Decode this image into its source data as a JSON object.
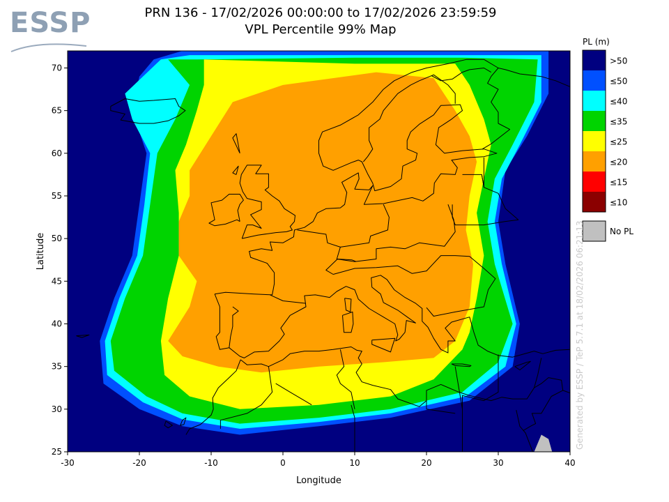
{
  "logo": {
    "text": "ESSP"
  },
  "title": {
    "line1": "PRN 136 - 17/02/2026 00:00:00 to 17/02/2026 23:59:59",
    "line2": "VPL Percentile 99% Map"
  },
  "watermark": "Generated by ESSP / TeP 5.7.1 at 18/02/2026 06:21:13",
  "colors": {
    "gt50": "#000080",
    "le50": "#0050ff",
    "le40": "#00ffff",
    "le35": "#00d400",
    "le25": "#ffff00",
    "le20": "#ffa000",
    "le15": "#ff0000",
    "le10": "#8b0000",
    "nopl": "#c0c0c0",
    "coast": "#000000"
  },
  "chart_data": {
    "type": "heatmap",
    "xlabel": "Longitude",
    "ylabel": "Latitude",
    "xlim": [
      -30,
      40
    ],
    "ylim": [
      25,
      72
    ],
    "xticks": [
      -30,
      -20,
      -10,
      0,
      10,
      20,
      30,
      40
    ],
    "yticks": [
      25,
      30,
      35,
      40,
      45,
      50,
      55,
      60,
      65,
      70
    ],
    "legend": {
      "title": "PL (m)",
      "placement": "right",
      "entries": [
        {
          "label": ">50",
          "color": "#000080"
        },
        {
          "label": "≤50",
          "color": "#0050ff"
        },
        {
          "label": "≤40",
          "color": "#00ffff"
        },
        {
          "label": "≤35",
          "color": "#00d400"
        },
        {
          "label": "≤25",
          "color": "#ffff00"
        },
        {
          "label": "≤20",
          "color": "#ffa000"
        },
        {
          "label": "≤15",
          "color": "#ff0000"
        },
        {
          "label": "≤10",
          "color": "#8b0000"
        }
      ],
      "no_pl": {
        "label": "No PL",
        "color": "#c0c0c0"
      }
    },
    "regions": [
      {
        "level": "≤50",
        "polygon": [
          [
            -18,
            71
          ],
          [
            -14,
            72
          ],
          [
            12,
            72
          ],
          [
            25,
            72
          ],
          [
            37,
            72
          ],
          [
            37,
            67
          ],
          [
            34,
            62
          ],
          [
            31,
            58
          ],
          [
            30,
            52
          ],
          [
            31,
            47
          ],
          [
            33,
            40
          ],
          [
            32,
            35
          ],
          [
            26,
            31
          ],
          [
            15,
            29
          ],
          [
            5,
            28
          ],
          [
            -6,
            27
          ],
          [
            -14,
            28
          ],
          [
            -20,
            30
          ],
          [
            -25,
            33
          ],
          [
            -25.5,
            38
          ],
          [
            -23.5,
            43
          ],
          [
            -21,
            48
          ],
          [
            -20,
            54
          ],
          [
            -19,
            60
          ],
          [
            -21,
            65
          ],
          [
            -20,
            69
          ]
        ]
      },
      {
        "level": "≤40",
        "polygon": [
          [
            -17,
            71
          ],
          [
            -13,
            71.5
          ],
          [
            12,
            71.5
          ],
          [
            25,
            71.5
          ],
          [
            36,
            71.5
          ],
          [
            36,
            66
          ],
          [
            33,
            61
          ],
          [
            30.5,
            57
          ],
          [
            29.5,
            52
          ],
          [
            30.5,
            47
          ],
          [
            32.5,
            40
          ],
          [
            31,
            35
          ],
          [
            25.5,
            31.5
          ],
          [
            15,
            29.5
          ],
          [
            5,
            28.5
          ],
          [
            -6,
            27.7
          ],
          [
            -14,
            28.8
          ],
          [
            -19.5,
            30.8
          ],
          [
            -24.5,
            34
          ],
          [
            -24.8,
            38
          ],
          [
            -22.8,
            43
          ],
          [
            -20.3,
            48
          ],
          [
            -19.3,
            54
          ],
          [
            -18.5,
            60
          ],
          [
            -21,
            64
          ],
          [
            -22,
            67
          ]
        ]
      },
      {
        "level": "≤35",
        "polygon": [
          [
            -16,
            71
          ],
          [
            -12,
            71
          ],
          [
            10,
            71.2
          ],
          [
            25,
            71.2
          ],
          [
            35.5,
            71
          ],
          [
            35,
            66
          ],
          [
            32,
            61
          ],
          [
            29.5,
            57
          ],
          [
            28.5,
            52
          ],
          [
            29.5,
            47
          ],
          [
            32,
            40
          ],
          [
            30,
            35.5
          ],
          [
            25,
            32
          ],
          [
            15,
            30
          ],
          [
            5,
            29
          ],
          [
            -6,
            28.3
          ],
          [
            -14,
            29.5
          ],
          [
            -19,
            31.5
          ],
          [
            -23.5,
            34.5
          ],
          [
            -24,
            38
          ],
          [
            -22,
            43
          ],
          [
            -19.5,
            48
          ],
          [
            -18.5,
            54
          ],
          [
            -17.5,
            60
          ],
          [
            -15,
            64
          ],
          [
            -13,
            68
          ]
        ]
      },
      {
        "level": "≤25",
        "polygon": [
          [
            -11,
            71
          ],
          [
            10,
            70.5
          ],
          [
            24,
            70.5
          ],
          [
            26,
            68
          ],
          [
            28,
            64
          ],
          [
            29,
            61
          ],
          [
            28,
            57
          ],
          [
            27,
            53
          ],
          [
            28,
            48
          ],
          [
            27,
            43
          ],
          [
            26,
            39
          ],
          [
            25,
            37
          ],
          [
            21,
            33.5
          ],
          [
            15,
            31.5
          ],
          [
            5,
            30.5
          ],
          [
            -6,
            30
          ],
          [
            -13,
            31.5
          ],
          [
            -16.5,
            34
          ],
          [
            -17,
            38
          ],
          [
            -16,
            43
          ],
          [
            -14.5,
            48
          ],
          [
            -14.5,
            53
          ],
          [
            -15,
            58
          ],
          [
            -13.5,
            61
          ],
          [
            -12,
            65
          ],
          [
            -11,
            68
          ]
        ]
      },
      {
        "level": "≤20",
        "polygon": [
          [
            -7,
            66
          ],
          [
            0,
            68
          ],
          [
            13,
            69.5
          ],
          [
            21,
            68.8
          ],
          [
            24,
            65
          ],
          [
            26,
            62
          ],
          [
            27,
            59
          ],
          [
            26,
            55
          ],
          [
            25.5,
            51
          ],
          [
            26.5,
            47
          ],
          [
            26,
            42
          ],
          [
            24,
            38
          ],
          [
            21,
            36
          ],
          [
            14,
            35.5
          ],
          [
            5,
            35
          ],
          [
            -3,
            34.3
          ],
          [
            -9,
            35
          ],
          [
            -14,
            36.2
          ],
          [
            -16,
            38
          ],
          [
            -13,
            42
          ],
          [
            -12,
            45
          ],
          [
            -14.5,
            48
          ],
          [
            -14.5,
            52
          ],
          [
            -13,
            55
          ],
          [
            -13,
            58
          ],
          [
            -10,
            62
          ]
        ]
      }
    ],
    "no_pl_cells": [
      [
        [
          36,
          27
        ],
        [
          37,
          26.5
        ],
        [
          37.5,
          25
        ],
        [
          35,
          25
        ]
      ]
    ]
  }
}
